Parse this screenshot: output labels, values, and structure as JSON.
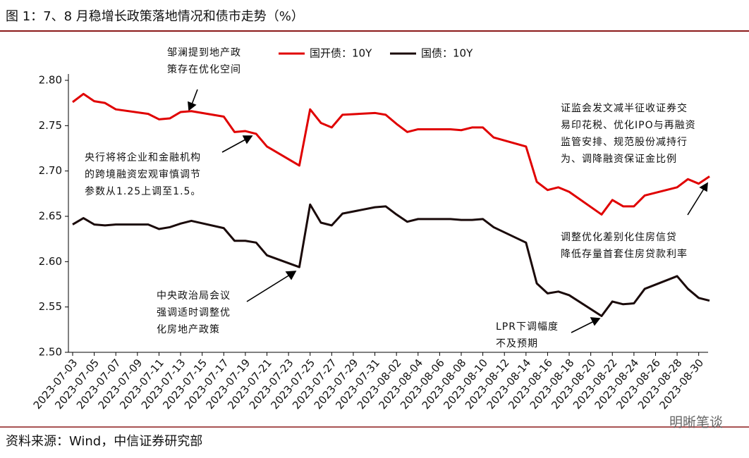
{
  "header": {
    "title": "图 1：7、8 月稳增长政策落地情况和债市走势（%）"
  },
  "chart_data": {
    "type": "line",
    "x": [
      "2023-07-03",
      "2023-07-04",
      "2023-07-05",
      "2023-07-06",
      "2023-07-07",
      "2023-07-10",
      "2023-07-11",
      "2023-07-12",
      "2023-07-13",
      "2023-07-14",
      "2023-07-17",
      "2023-07-18",
      "2023-07-19",
      "2023-07-20",
      "2023-07-21",
      "2023-07-24",
      "2023-07-25",
      "2023-07-26",
      "2023-07-27",
      "2023-07-28",
      "2023-07-31",
      "2023-08-01",
      "2023-08-02",
      "2023-08-03",
      "2023-08-04",
      "2023-08-07",
      "2023-08-08",
      "2023-08-09",
      "2023-08-10",
      "2023-08-11",
      "2023-08-14",
      "2023-08-15",
      "2023-08-16",
      "2023-08-17",
      "2023-08-18",
      "2023-08-21",
      "2023-08-22",
      "2023-08-23",
      "2023-08-24",
      "2023-08-25",
      "2023-08-28",
      "2023-08-29",
      "2023-08-30",
      "2023-08-31"
    ],
    "series": [
      {
        "name": "国开债：10Y",
        "color": "#e00000",
        "values": [
          2.776,
          2.785,
          2.777,
          2.775,
          2.768,
          2.763,
          2.757,
          2.758,
          2.765,
          2.766,
          2.76,
          2.743,
          2.744,
          2.741,
          2.727,
          2.706,
          2.768,
          2.753,
          2.748,
          2.762,
          2.764,
          2.762,
          2.752,
          2.743,
          2.746,
          2.746,
          2.745,
          2.748,
          2.748,
          2.737,
          2.727,
          2.688,
          2.679,
          2.682,
          2.677,
          2.652,
          2.668,
          2.661,
          2.661,
          2.673,
          2.682,
          2.691,
          2.686,
          2.694
        ]
      },
      {
        "name": "国债：10Y",
        "color": "#1a0a0a",
        "values": [
          2.641,
          2.648,
          2.641,
          2.64,
          2.641,
          2.641,
          2.636,
          2.638,
          2.642,
          2.645,
          2.637,
          2.623,
          2.623,
          2.621,
          2.607,
          2.594,
          2.663,
          2.643,
          2.64,
          2.653,
          2.66,
          2.661,
          2.652,
          2.644,
          2.647,
          2.647,
          2.646,
          2.646,
          2.647,
          2.638,
          2.621,
          2.576,
          2.565,
          2.567,
          2.563,
          2.54,
          2.556,
          2.553,
          2.554,
          2.57,
          2.584,
          2.57,
          2.56,
          2.557
        ]
      }
    ],
    "xlim": [
      "2023-07-03",
      "2023-08-31"
    ],
    "xticks": [
      "2023-07-03",
      "2023-07-05",
      "2023-07-07",
      "2023-07-09",
      "2023-07-11",
      "2023-07-13",
      "2023-07-15",
      "2023-07-17",
      "2023-07-19",
      "2023-07-21",
      "2023-07-23",
      "2023-07-25",
      "2023-07-27",
      "2023-07-29",
      "2023-07-31",
      "2023-08-02",
      "2023-08-04",
      "2023-08-06",
      "2023-08-08",
      "2023-08-10",
      "2023-08-12",
      "2023-08-14",
      "2023-08-16",
      "2023-08-18",
      "2023-08-20",
      "2023-08-22",
      "2023-08-24",
      "2023-08-26",
      "2023-08-28",
      "2023-08-30"
    ],
    "ylim": [
      2.5,
      2.8
    ],
    "yticks": [
      {
        "value": 2.5,
        "label": "2.50"
      },
      2.55,
      {
        "value": 2.6,
        "label": "2.60"
      },
      2.65,
      {
        "value": 2.7,
        "label": "2.70"
      },
      2.75,
      {
        "value": 2.8,
        "label": "2.80"
      }
    ],
    "legend": "top",
    "annotations": [
      [
        "邹澜提到地产政",
        "策存在优化空间"
      ],
      [
        "央行将将企业和金融机构",
        "的跨境融资宏观审慎调节",
        "参数从1.25上调至1.5。"
      ],
      [
        "中央政治局会议",
        "强调适时调整优",
        "化房地产政策"
      ],
      [
        "LPR下调幅度",
        "不及预期"
      ],
      [
        "证监会发文减半征收证券交",
        "易印花税、优化IPO与再融资",
        "监管安排、规范股份减持行",
        "为、调降融资保证金比例"
      ],
      [
        "调整优化差别化住房信贷",
        "降低存量首套住房贷款利率"
      ]
    ]
  },
  "footer": {
    "source": "资料来源：Wind，中信证券研究部",
    "watermark": "明晰笔谈"
  }
}
